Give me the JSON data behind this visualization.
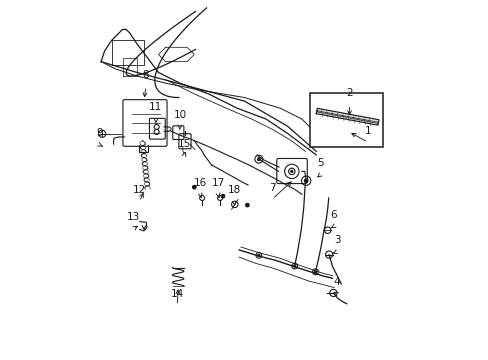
{
  "bg_color": "#ffffff",
  "line_color": "#1a1a1a",
  "figsize": [
    4.89,
    3.6
  ],
  "dpi": 100,
  "labels": {
    "1": [
      0.845,
      0.605,
      0.79,
      0.635
    ],
    "2": [
      0.793,
      0.71,
      0.793,
      0.672
    ],
    "3": [
      0.758,
      0.3,
      0.738,
      0.292
    ],
    "4": [
      0.758,
      0.183,
      0.748,
      0.188
    ],
    "5": [
      0.712,
      0.515,
      0.696,
      0.502
    ],
    "6": [
      0.748,
      0.37,
      0.734,
      0.362
    ],
    "7": [
      0.578,
      0.447,
      0.638,
      0.502
    ],
    "8": [
      0.225,
      0.762,
      0.22,
      0.722
    ],
    "9": [
      0.096,
      0.598,
      0.112,
      0.59
    ],
    "10": [
      0.32,
      0.65,
      0.319,
      0.632
    ],
    "11": [
      0.253,
      0.672,
      0.253,
      0.65
    ],
    "12": [
      0.207,
      0.44,
      0.222,
      0.472
    ],
    "13": [
      0.19,
      0.364,
      0.21,
      0.377
    ],
    "14": [
      0.313,
      0.15,
      0.315,
      0.204
    ],
    "15": [
      0.332,
      0.569,
      0.337,
      0.587
    ],
    "16": [
      0.377,
      0.46,
      0.382,
      0.442
    ],
    "17": [
      0.427,
      0.46,
      0.432,
      0.442
    ],
    "18": [
      0.472,
      0.44,
      0.473,
      0.427
    ]
  }
}
